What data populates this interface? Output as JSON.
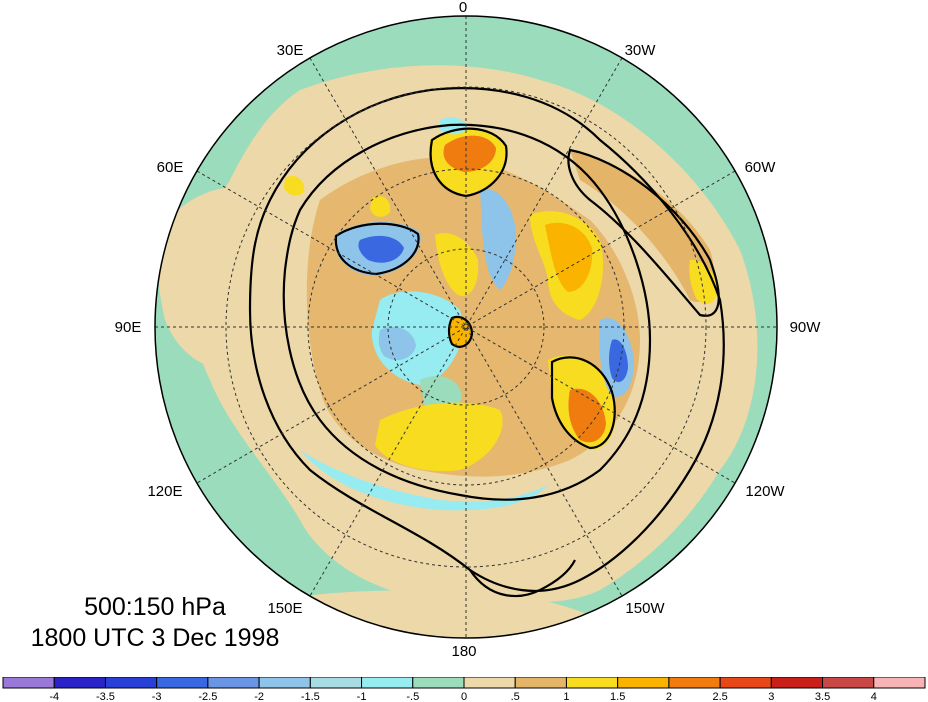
{
  "map": {
    "projection": "north-polar-stereographic",
    "longitude_labels": {
      "top": "0",
      "top_right": "30W",
      "right_upper": "60W",
      "right": "90W",
      "right_lower": "120W",
      "bottom_right": "150W",
      "bottom": "180",
      "bottom_left": "150E",
      "left_lower": "120E",
      "left": "90E",
      "left_upper": "60E",
      "top_left": "30E"
    },
    "title": {
      "level": "500:150 hPa",
      "time": "1800 UTC 3 Dec 1998"
    }
  },
  "colorbar": {
    "labels": [
      "-4",
      "-3.5",
      "-3",
      "-2.5",
      "-2",
      "-1.5",
      "-1",
      "-.5",
      "0",
      ".5",
      "1",
      "1.5",
      "2",
      "2.5",
      "3",
      "3.5",
      "4"
    ],
    "colors": [
      "#9a78d8",
      "#2a24c8",
      "#2840d8",
      "#3a68e0",
      "#6a94e4",
      "#8ec4ea",
      "#a8dce4",
      "#96ecf0",
      "#9adcbc",
      "#ecd8a8",
      "#e4b468",
      "#f8dc20",
      "#fab400",
      "#f07c10",
      "#e84818",
      "#c82018",
      "#c84848",
      "#f8b4b4"
    ]
  },
  "field_colors": {
    "ocean_neutral": "#9adcbc",
    "land_neutral": "#ecd8a8",
    "positive_light": "#e4b468",
    "positive_mid": "#f8dc20",
    "positive_strong": "#fab400",
    "positive_max": "#f07c10",
    "negative_light": "#96ecf0",
    "negative_mid": "#8ec4ea",
    "negative_strong": "#3a68e0"
  }
}
